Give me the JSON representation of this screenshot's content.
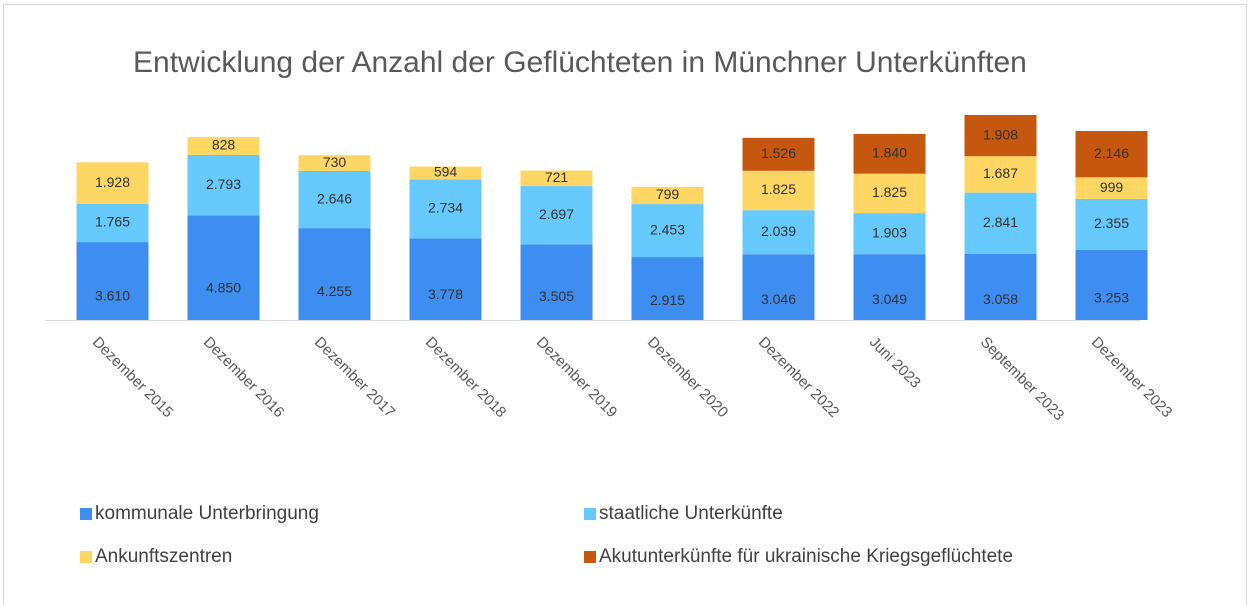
{
  "chart_data": {
    "type": "stacked_bar",
    "title": "Entwicklung der Anzahl der Geflüchteten in Münchner Unterkünften",
    "categories": [
      "Dezember 2015",
      "Dezember 2016",
      "Dezember 2017",
      "Dezember 2018",
      "Dezember 2019",
      "Dezember 2020",
      "Dezember 2022",
      "Juni 2023",
      "September 2023",
      "Dezember 2023"
    ],
    "series": [
      {
        "name": "kommunale Unterbringung",
        "color": "#3d8ef0",
        "values": [
          3610,
          4850,
          4255,
          3778,
          3505,
          2915,
          3046,
          3049,
          3058,
          3253
        ],
        "value_labels": [
          "3.610",
          "4.850",
          "4.255",
          "3.778",
          "3.505",
          "2.915",
          "3.046",
          "3.049",
          "3.058",
          "3.253"
        ]
      },
      {
        "name": "staatliche Unterkünfte",
        "color": "#66c9fb",
        "values": [
          1765,
          2793,
          2646,
          2734,
          2697,
          2453,
          2039,
          1903,
          2841,
          2355
        ],
        "value_labels": [
          "1.765",
          "2.793",
          "2.646",
          "2.734",
          "2.697",
          "2.453",
          "2.039",
          "1.903",
          "2.841",
          "2.355"
        ]
      },
      {
        "name": "Ankunftszentren",
        "color": "#fdd663",
        "values": [
          1928,
          828,
          730,
          594,
          721,
          799,
          1825,
          1825,
          1687,
          999
        ],
        "value_labels": [
          "1.928",
          "828",
          "730",
          "594",
          "721",
          "799",
          "1.825",
          "1.825",
          "1.687",
          "999"
        ]
      },
      {
        "name": "Akutunterkünfte für ukrainische Kriegsgeflüchtete",
        "color": "#c5570f",
        "values": [
          null,
          null,
          null,
          null,
          null,
          null,
          1526,
          1840,
          1908,
          2146
        ],
        "value_labels": [
          null,
          null,
          null,
          null,
          null,
          null,
          "1.526",
          "1.840",
          "1.908",
          "2.146"
        ]
      }
    ]
  }
}
